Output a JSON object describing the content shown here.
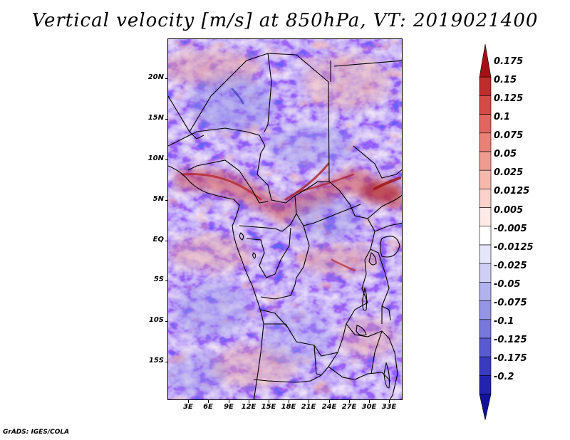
{
  "title": "Vertical velocity [m/s] at 850hPa, VT: 2019021400",
  "footer": "GrADS: IGES/COLA",
  "map": {
    "lat_labels": [
      "20N",
      "15N",
      "10N",
      "5N",
      "EQ",
      "5S",
      "10S",
      "15S"
    ],
    "lon_labels": [
      "3E",
      "6E",
      "9E",
      "12E",
      "15E",
      "18E",
      "21E",
      "24E",
      "27E",
      "30E",
      "33E"
    ]
  },
  "colorbar": {
    "levels": [
      "0.175",
      "0.15",
      "0.125",
      "0.1",
      "0.075",
      "0.05",
      "0.025",
      "0.0125",
      "0.005",
      "-0.005",
      "-0.0125",
      "-0.025",
      "-0.05",
      "-0.075",
      "-0.1",
      "-0.125",
      "-0.175",
      "-0.2"
    ],
    "colors": [
      "#a50f15",
      "#bf2c2c",
      "#d44b45",
      "#e0665e",
      "#e98276",
      "#f09b8f",
      "#f6b8ad",
      "#fad2cb",
      "#fdeae6",
      "#ffffff",
      "#e6e6fb",
      "#cfcff6",
      "#b2b2ef",
      "#9595e6",
      "#7777dc",
      "#5959d0",
      "#3a3ac1",
      "#2323b0",
      "#12129a"
    ]
  },
  "colors": {
    "positive": "#d43c3c",
    "negative": "#6464dc",
    "border": "#000000"
  }
}
